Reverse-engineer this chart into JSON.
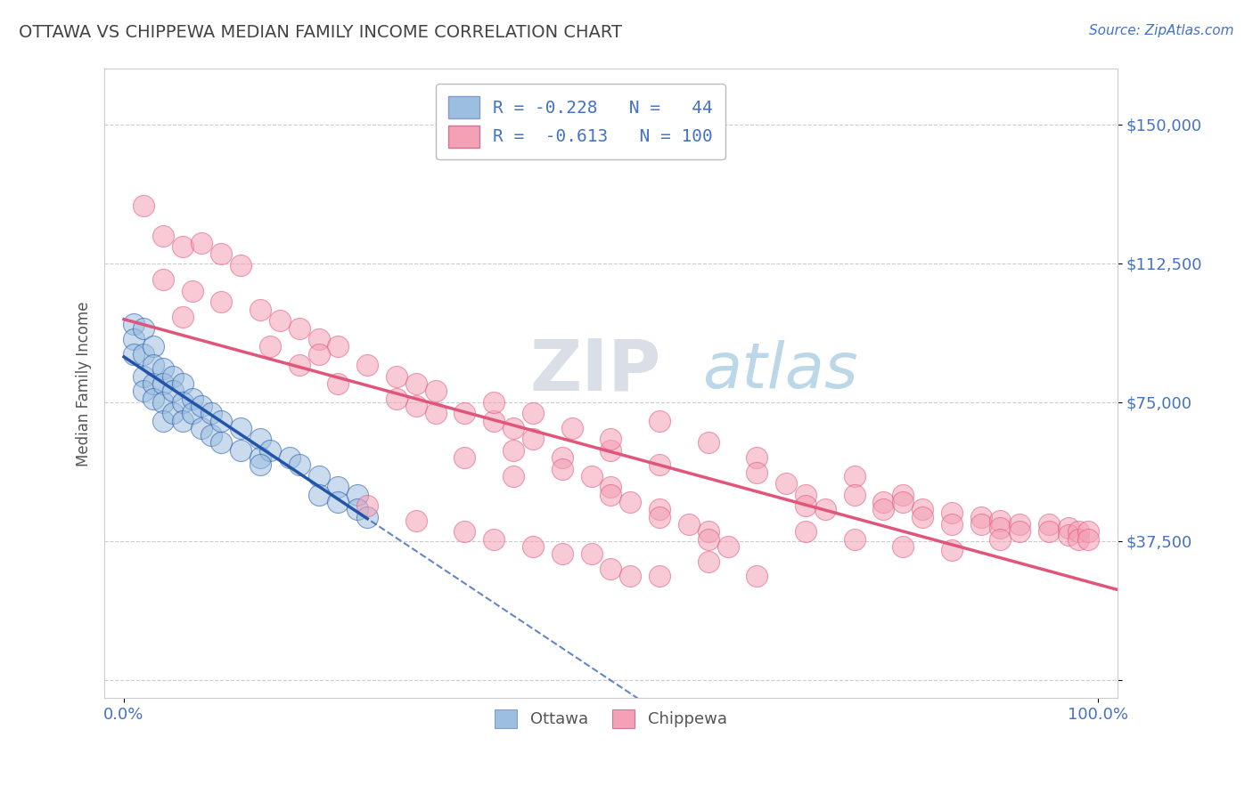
{
  "title": "OTTAWA VS CHIPPEWA MEDIAN FAMILY INCOME CORRELATION CHART",
  "source": "Source: ZipAtlas.com",
  "ylabel": "Median Family Income",
  "xlim": [
    -0.02,
    1.02
  ],
  "ylim": [
    -5000,
    165000
  ],
  "yticks": [
    0,
    37500,
    75000,
    112500,
    150000
  ],
  "ytick_labels": [
    "",
    "$37,500",
    "$75,000",
    "$112,500",
    "$150,000"
  ],
  "xticks": [
    0.0,
    1.0
  ],
  "xtick_labels": [
    "0.0%",
    "100.0%"
  ],
  "ottawa_color": "#9dbfdf",
  "chippewa_color": "#f4a0b5",
  "ottawa_line_color": "#2255aa",
  "chippewa_line_color": "#e0557a",
  "watermark_zip": "ZIP",
  "watermark_atlas": "atlas",
  "legend_text1": "R = -0.228   N =   44",
  "legend_text2": "R =  -0.613   N = 100",
  "ottawa_label": "Ottawa",
  "chippewa_label": "Chippewa",
  "background_color": "#ffffff",
  "grid_color": "#cccccc",
  "title_color": "#444444",
  "tick_color": "#4472c4",
  "ottawa_scatter": [
    [
      0.01,
      96000
    ],
    [
      0.01,
      92000
    ],
    [
      0.01,
      88000
    ],
    [
      0.02,
      95000
    ],
    [
      0.02,
      88000
    ],
    [
      0.02,
      82000
    ],
    [
      0.02,
      78000
    ],
    [
      0.03,
      90000
    ],
    [
      0.03,
      85000
    ],
    [
      0.03,
      80000
    ],
    [
      0.03,
      76000
    ],
    [
      0.04,
      84000
    ],
    [
      0.04,
      80000
    ],
    [
      0.04,
      75000
    ],
    [
      0.04,
      70000
    ],
    [
      0.05,
      82000
    ],
    [
      0.05,
      78000
    ],
    [
      0.05,
      72000
    ],
    [
      0.06,
      80000
    ],
    [
      0.06,
      75000
    ],
    [
      0.06,
      70000
    ],
    [
      0.07,
      76000
    ],
    [
      0.07,
      72000
    ],
    [
      0.08,
      74000
    ],
    [
      0.08,
      68000
    ],
    [
      0.09,
      72000
    ],
    [
      0.09,
      66000
    ],
    [
      0.1,
      70000
    ],
    [
      0.1,
      64000
    ],
    [
      0.12,
      68000
    ],
    [
      0.12,
      62000
    ],
    [
      0.14,
      65000
    ],
    [
      0.14,
      60000
    ],
    [
      0.15,
      62000
    ],
    [
      0.17,
      60000
    ],
    [
      0.18,
      58000
    ],
    [
      0.2,
      55000
    ],
    [
      0.22,
      52000
    ],
    [
      0.24,
      50000
    ],
    [
      0.14,
      58000
    ],
    [
      0.2,
      50000
    ],
    [
      0.22,
      48000
    ],
    [
      0.24,
      46000
    ],
    [
      0.25,
      44000
    ]
  ],
  "chippewa_scatter": [
    [
      0.02,
      128000
    ],
    [
      0.04,
      120000
    ],
    [
      0.06,
      117000
    ],
    [
      0.08,
      118000
    ],
    [
      0.1,
      115000
    ],
    [
      0.12,
      112000
    ],
    [
      0.04,
      108000
    ],
    [
      0.07,
      105000
    ],
    [
      0.1,
      102000
    ],
    [
      0.06,
      98000
    ],
    [
      0.14,
      100000
    ],
    [
      0.16,
      97000
    ],
    [
      0.18,
      95000
    ],
    [
      0.2,
      92000
    ],
    [
      0.22,
      90000
    ],
    [
      0.2,
      88000
    ],
    [
      0.25,
      85000
    ],
    [
      0.28,
      82000
    ],
    [
      0.3,
      80000
    ],
    [
      0.32,
      78000
    ],
    [
      0.3,
      74000
    ],
    [
      0.35,
      72000
    ],
    [
      0.38,
      70000
    ],
    [
      0.4,
      68000
    ],
    [
      0.42,
      65000
    ],
    [
      0.4,
      62000
    ],
    [
      0.45,
      60000
    ],
    [
      0.45,
      57000
    ],
    [
      0.48,
      55000
    ],
    [
      0.5,
      52000
    ],
    [
      0.5,
      50000
    ],
    [
      0.52,
      48000
    ],
    [
      0.55,
      46000
    ],
    [
      0.55,
      44000
    ],
    [
      0.58,
      42000
    ],
    [
      0.6,
      40000
    ],
    [
      0.6,
      38000
    ],
    [
      0.62,
      36000
    ],
    [
      0.65,
      60000
    ],
    [
      0.65,
      56000
    ],
    [
      0.68,
      53000
    ],
    [
      0.7,
      50000
    ],
    [
      0.7,
      47000
    ],
    [
      0.72,
      46000
    ],
    [
      0.75,
      55000
    ],
    [
      0.75,
      50000
    ],
    [
      0.78,
      48000
    ],
    [
      0.78,
      46000
    ],
    [
      0.8,
      50000
    ],
    [
      0.8,
      48000
    ],
    [
      0.82,
      46000
    ],
    [
      0.82,
      44000
    ],
    [
      0.85,
      45000
    ],
    [
      0.85,
      42000
    ],
    [
      0.88,
      44000
    ],
    [
      0.88,
      42000
    ],
    [
      0.9,
      43000
    ],
    [
      0.9,
      41000
    ],
    [
      0.92,
      42000
    ],
    [
      0.92,
      40000
    ],
    [
      0.95,
      42000
    ],
    [
      0.95,
      40000
    ],
    [
      0.97,
      41000
    ],
    [
      0.97,
      39000
    ],
    [
      0.98,
      40000
    ],
    [
      0.98,
      38000
    ],
    [
      0.99,
      40000
    ],
    [
      0.99,
      38000
    ],
    [
      0.25,
      47000
    ],
    [
      0.3,
      43000
    ],
    [
      0.35,
      40000
    ],
    [
      0.38,
      38000
    ],
    [
      0.42,
      36000
    ],
    [
      0.45,
      34000
    ],
    [
      0.5,
      30000
    ],
    [
      0.55,
      28000
    ],
    [
      0.6,
      32000
    ],
    [
      0.65,
      28000
    ],
    [
      0.4,
      55000
    ],
    [
      0.35,
      60000
    ],
    [
      0.5,
      62000
    ],
    [
      0.55,
      58000
    ],
    [
      0.6,
      64000
    ],
    [
      0.38,
      75000
    ],
    [
      0.42,
      72000
    ],
    [
      0.46,
      68000
    ],
    [
      0.5,
      65000
    ],
    [
      0.55,
      70000
    ],
    [
      0.15,
      90000
    ],
    [
      0.18,
      85000
    ],
    [
      0.22,
      80000
    ],
    [
      0.28,
      76000
    ],
    [
      0.32,
      72000
    ],
    [
      0.7,
      40000
    ],
    [
      0.75,
      38000
    ],
    [
      0.8,
      36000
    ],
    [
      0.85,
      35000
    ],
    [
      0.9,
      38000
    ],
    [
      0.48,
      34000
    ],
    [
      0.52,
      28000
    ]
  ]
}
